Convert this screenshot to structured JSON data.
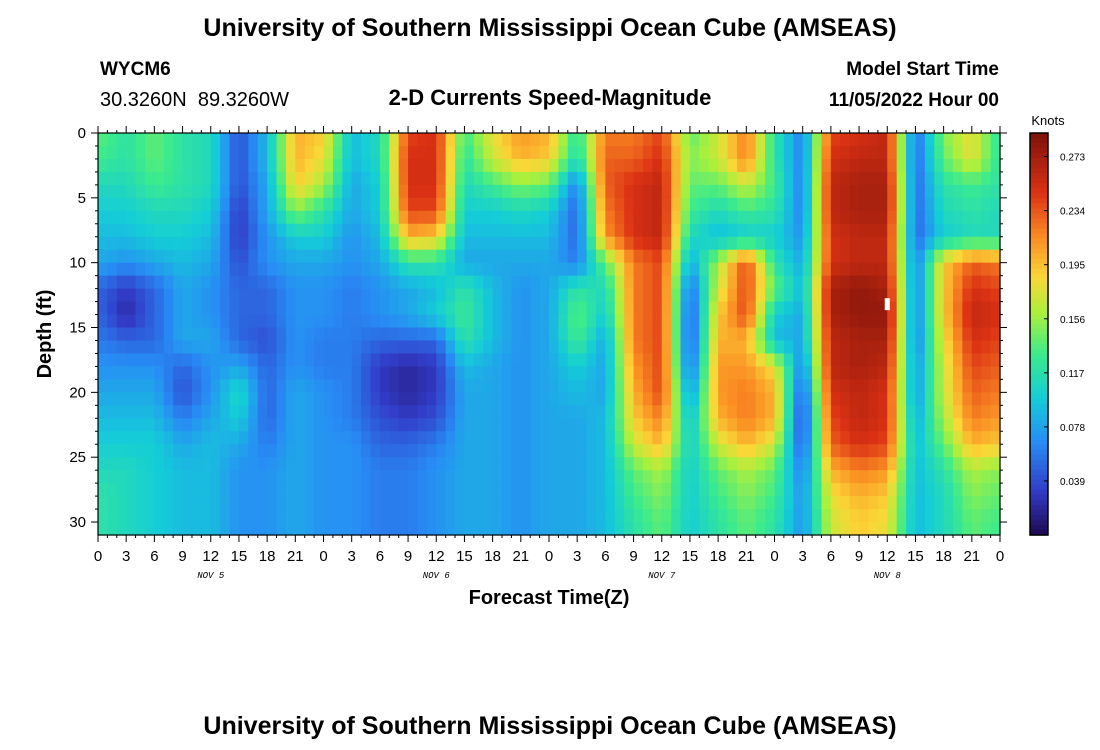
{
  "chart_data": {
    "type": "heatmap",
    "title": "University of Southern Mississippi Ocean Cube (AMSEAS)",
    "subtitle": "2-D Currents Speed-Magnitude",
    "station": "WYCM6",
    "location": "30.3260N  89.3260W",
    "model_start_label": "Model Start Time",
    "model_start_value": "11/05/2022 Hour 00",
    "xlabel": "Forecast Time(Z)",
    "ylabel": "Depth (ft)",
    "footer_title": "University of Southern Mississippi Ocean Cube (AMSEAS)",
    "x_range_hours": [
      0,
      96
    ],
    "y_range_ft": [
      0,
      31
    ],
    "y_axis_inverted": true,
    "x_tick_labels": [
      "0",
      "3",
      "6",
      "9",
      "12",
      "15",
      "18",
      "21",
      "0",
      "3",
      "6",
      "9",
      "12",
      "15",
      "18",
      "21",
      "0",
      "3",
      "6",
      "9",
      "12",
      "15",
      "18",
      "21",
      "0",
      "3",
      "6",
      "9",
      "12",
      "15",
      "18",
      "21",
      "0"
    ],
    "y_tick_labels": [
      "0",
      "5",
      "10",
      "15",
      "20",
      "25",
      "30"
    ],
    "y_tick_values": [
      0,
      5,
      10,
      15,
      20,
      25,
      30
    ],
    "day_labels": [
      {
        "label": "NOV 5",
        "hour": 12
      },
      {
        "label": "NOV 6",
        "hour": 36
      },
      {
        "label": "NOV 7",
        "hour": 60
      },
      {
        "label": "NOV 8",
        "hour": 84
      }
    ],
    "colorbar": {
      "unit": "Knots",
      "min": 0.0,
      "max": 0.29,
      "tick_labels": [
        "0.273",
        "0.234",
        "0.195",
        "0.156",
        "0.117",
        "0.078",
        "0.039"
      ],
      "tick_values": [
        0.273,
        0.234,
        0.195,
        0.156,
        0.117,
        0.078,
        0.039
      ]
    },
    "grid_depths_ft": [
      0,
      2,
      4,
      6,
      8,
      10,
      12,
      14,
      16,
      18,
      20,
      22,
      24,
      26,
      28,
      30
    ],
    "grid_hours": [
      0,
      3,
      6,
      9,
      12,
      15,
      18,
      21,
      24,
      27,
      30,
      33,
      36,
      39,
      42,
      45,
      48,
      51,
      54,
      57,
      60,
      63,
      66,
      69,
      72,
      75,
      78,
      81,
      84,
      87,
      90,
      93,
      96
    ],
    "speed_knots": [
      [
        0.14,
        0.12,
        0.14,
        0.12,
        0.11,
        0.04,
        0.09,
        0.2,
        0.19,
        0.09,
        0.11,
        0.24,
        0.25,
        0.13,
        0.18,
        0.21,
        0.2,
        0.12,
        0.22,
        0.22,
        0.24,
        0.14,
        0.17,
        0.22,
        0.12,
        0.06,
        0.24,
        0.25,
        0.26,
        0.05,
        0.15,
        0.18,
        0.12
      ],
      [
        0.13,
        0.12,
        0.14,
        0.12,
        0.11,
        0.04,
        0.09,
        0.2,
        0.18,
        0.09,
        0.11,
        0.25,
        0.25,
        0.12,
        0.17,
        0.2,
        0.19,
        0.11,
        0.23,
        0.23,
        0.25,
        0.15,
        0.17,
        0.22,
        0.12,
        0.06,
        0.25,
        0.26,
        0.26,
        0.05,
        0.14,
        0.18,
        0.12
      ],
      [
        0.11,
        0.11,
        0.13,
        0.12,
        0.11,
        0.04,
        0.08,
        0.19,
        0.16,
        0.08,
        0.1,
        0.25,
        0.25,
        0.11,
        0.13,
        0.15,
        0.14,
        0.06,
        0.23,
        0.25,
        0.26,
        0.14,
        0.14,
        0.17,
        0.13,
        0.06,
        0.26,
        0.27,
        0.27,
        0.05,
        0.12,
        0.13,
        0.12
      ],
      [
        0.1,
        0.1,
        0.11,
        0.11,
        0.1,
        0.03,
        0.08,
        0.15,
        0.12,
        0.08,
        0.1,
        0.24,
        0.24,
        0.1,
        0.1,
        0.11,
        0.1,
        0.05,
        0.22,
        0.25,
        0.26,
        0.13,
        0.11,
        0.13,
        0.12,
        0.06,
        0.26,
        0.27,
        0.27,
        0.05,
        0.11,
        0.12,
        0.11
      ],
      [
        0.09,
        0.09,
        0.1,
        0.1,
        0.09,
        0.03,
        0.07,
        0.1,
        0.1,
        0.07,
        0.09,
        0.2,
        0.19,
        0.09,
        0.09,
        0.09,
        0.09,
        0.05,
        0.21,
        0.25,
        0.26,
        0.11,
        0.09,
        0.1,
        0.1,
        0.07,
        0.25,
        0.26,
        0.26,
        0.05,
        0.1,
        0.11,
        0.11
      ],
      [
        0.08,
        0.07,
        0.08,
        0.09,
        0.08,
        0.04,
        0.07,
        0.08,
        0.08,
        0.07,
        0.08,
        0.12,
        0.12,
        0.08,
        0.08,
        0.08,
        0.08,
        0.06,
        0.14,
        0.22,
        0.24,
        0.08,
        0.16,
        0.24,
        0.12,
        0.08,
        0.25,
        0.26,
        0.26,
        0.06,
        0.19,
        0.23,
        0.22
      ],
      [
        0.05,
        0.03,
        0.05,
        0.08,
        0.07,
        0.05,
        0.05,
        0.07,
        0.07,
        0.06,
        0.07,
        0.08,
        0.09,
        0.12,
        0.09,
        0.07,
        0.08,
        0.12,
        0.11,
        0.22,
        0.24,
        0.05,
        0.17,
        0.24,
        0.14,
        0.09,
        0.27,
        0.28,
        0.27,
        0.06,
        0.19,
        0.25,
        0.24
      ],
      [
        0.05,
        0.02,
        0.05,
        0.08,
        0.07,
        0.05,
        0.05,
        0.07,
        0.07,
        0.06,
        0.07,
        0.08,
        0.1,
        0.13,
        0.09,
        0.07,
        0.08,
        0.14,
        0.1,
        0.22,
        0.24,
        0.04,
        0.19,
        0.24,
        0.1,
        0.08,
        0.27,
        0.28,
        0.28,
        0.06,
        0.19,
        0.26,
        0.25
      ],
      [
        0.06,
        0.05,
        0.05,
        0.08,
        0.08,
        0.05,
        0.04,
        0.07,
        0.06,
        0.06,
        0.05,
        0.05,
        0.05,
        0.12,
        0.09,
        0.07,
        0.08,
        0.13,
        0.08,
        0.22,
        0.24,
        0.04,
        0.2,
        0.2,
        0.09,
        0.08,
        0.26,
        0.27,
        0.27,
        0.06,
        0.18,
        0.25,
        0.24
      ],
      [
        0.07,
        0.07,
        0.07,
        0.05,
        0.07,
        0.08,
        0.05,
        0.07,
        0.06,
        0.06,
        0.03,
        0.02,
        0.03,
        0.09,
        0.08,
        0.07,
        0.08,
        0.1,
        0.08,
        0.21,
        0.24,
        0.05,
        0.21,
        0.21,
        0.18,
        0.06,
        0.26,
        0.27,
        0.26,
        0.07,
        0.17,
        0.24,
        0.23
      ],
      [
        0.08,
        0.08,
        0.08,
        0.04,
        0.07,
        0.11,
        0.05,
        0.08,
        0.07,
        0.06,
        0.03,
        0.02,
        0.03,
        0.08,
        0.08,
        0.07,
        0.08,
        0.09,
        0.08,
        0.2,
        0.24,
        0.07,
        0.21,
        0.22,
        0.2,
        0.04,
        0.25,
        0.26,
        0.25,
        0.07,
        0.17,
        0.23,
        0.22
      ],
      [
        0.09,
        0.09,
        0.09,
        0.06,
        0.08,
        0.1,
        0.05,
        0.08,
        0.07,
        0.06,
        0.04,
        0.03,
        0.04,
        0.08,
        0.08,
        0.07,
        0.08,
        0.08,
        0.09,
        0.19,
        0.22,
        0.09,
        0.2,
        0.22,
        0.2,
        0.03,
        0.24,
        0.26,
        0.25,
        0.08,
        0.16,
        0.22,
        0.21
      ],
      [
        0.1,
        0.1,
        0.1,
        0.08,
        0.09,
        0.08,
        0.06,
        0.08,
        0.07,
        0.07,
        0.05,
        0.05,
        0.06,
        0.08,
        0.08,
        0.07,
        0.08,
        0.08,
        0.09,
        0.17,
        0.2,
        0.1,
        0.17,
        0.2,
        0.17,
        0.04,
        0.23,
        0.25,
        0.24,
        0.09,
        0.14,
        0.2,
        0.19
      ],
      [
        0.11,
        0.11,
        0.1,
        0.09,
        0.09,
        0.07,
        0.07,
        0.08,
        0.07,
        0.07,
        0.06,
        0.06,
        0.07,
        0.08,
        0.08,
        0.07,
        0.08,
        0.08,
        0.09,
        0.14,
        0.16,
        0.1,
        0.14,
        0.16,
        0.14,
        0.06,
        0.2,
        0.22,
        0.21,
        0.09,
        0.12,
        0.16,
        0.15
      ],
      [
        0.12,
        0.11,
        0.1,
        0.09,
        0.09,
        0.07,
        0.07,
        0.08,
        0.07,
        0.07,
        0.06,
        0.06,
        0.07,
        0.08,
        0.08,
        0.07,
        0.08,
        0.08,
        0.09,
        0.13,
        0.15,
        0.1,
        0.13,
        0.15,
        0.13,
        0.07,
        0.18,
        0.2,
        0.19,
        0.09,
        0.11,
        0.15,
        0.14
      ],
      [
        0.12,
        0.11,
        0.1,
        0.09,
        0.09,
        0.07,
        0.07,
        0.08,
        0.07,
        0.07,
        0.06,
        0.06,
        0.07,
        0.08,
        0.08,
        0.07,
        0.08,
        0.08,
        0.09,
        0.12,
        0.14,
        0.1,
        0.12,
        0.14,
        0.12,
        0.07,
        0.17,
        0.19,
        0.18,
        0.09,
        0.11,
        0.14,
        0.13
      ]
    ],
    "marker": {
      "hour": 84,
      "depth_ft": 13.2,
      "color": "#ffffff"
    }
  }
}
